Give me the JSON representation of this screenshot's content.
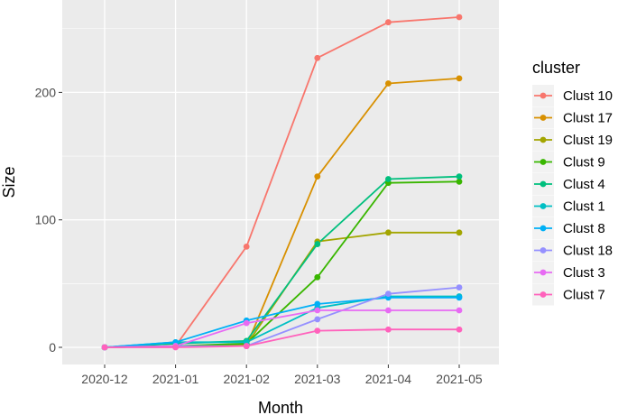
{
  "chart_data": {
    "type": "line",
    "xlabel": "Month",
    "ylabel": "Size",
    "categories": [
      "2020-12",
      "2021-01",
      "2021-02",
      "2021-03",
      "2021-04",
      "2021-05"
    ],
    "ylim": [
      -20,
      262
    ],
    "yticks": [
      0,
      100,
      200
    ],
    "grid": true,
    "legend_title": "cluster",
    "legend_position": "right",
    "series": [
      {
        "name": "Clust 10",
        "color": "#F8766D",
        "values": [
          0,
          1,
          79,
          227,
          255,
          259
        ]
      },
      {
        "name": "Clust 17",
        "color": "#D89000",
        "values": [
          0,
          1,
          1,
          134,
          207,
          211
        ]
      },
      {
        "name": "Clust 19",
        "color": "#A3A500",
        "values": [
          0,
          1,
          2,
          83,
          90,
          90
        ]
      },
      {
        "name": "Clust 9",
        "color": "#39B600",
        "values": [
          0,
          1,
          3,
          55,
          129,
          130
        ]
      },
      {
        "name": "Clust 4",
        "color": "#00BF7D",
        "values": [
          0,
          3,
          5,
          81,
          132,
          134
        ]
      },
      {
        "name": "Clust 1",
        "color": "#00BFC4",
        "values": [
          0,
          4,
          4,
          31,
          40,
          40
        ]
      },
      {
        "name": "Clust 8",
        "color": "#00B0F6",
        "values": [
          0,
          4,
          21,
          34,
          39,
          39
        ]
      },
      {
        "name": "Clust 18",
        "color": "#9590FF",
        "values": [
          0,
          1,
          1,
          22,
          42,
          47
        ]
      },
      {
        "name": "Clust 3",
        "color": "#E76BF3",
        "values": [
          0,
          1,
          19,
          29,
          29,
          29
        ]
      },
      {
        "name": "Clust 7",
        "color": "#FF62BC",
        "values": [
          0,
          0,
          1,
          13,
          14,
          14
        ]
      }
    ]
  }
}
